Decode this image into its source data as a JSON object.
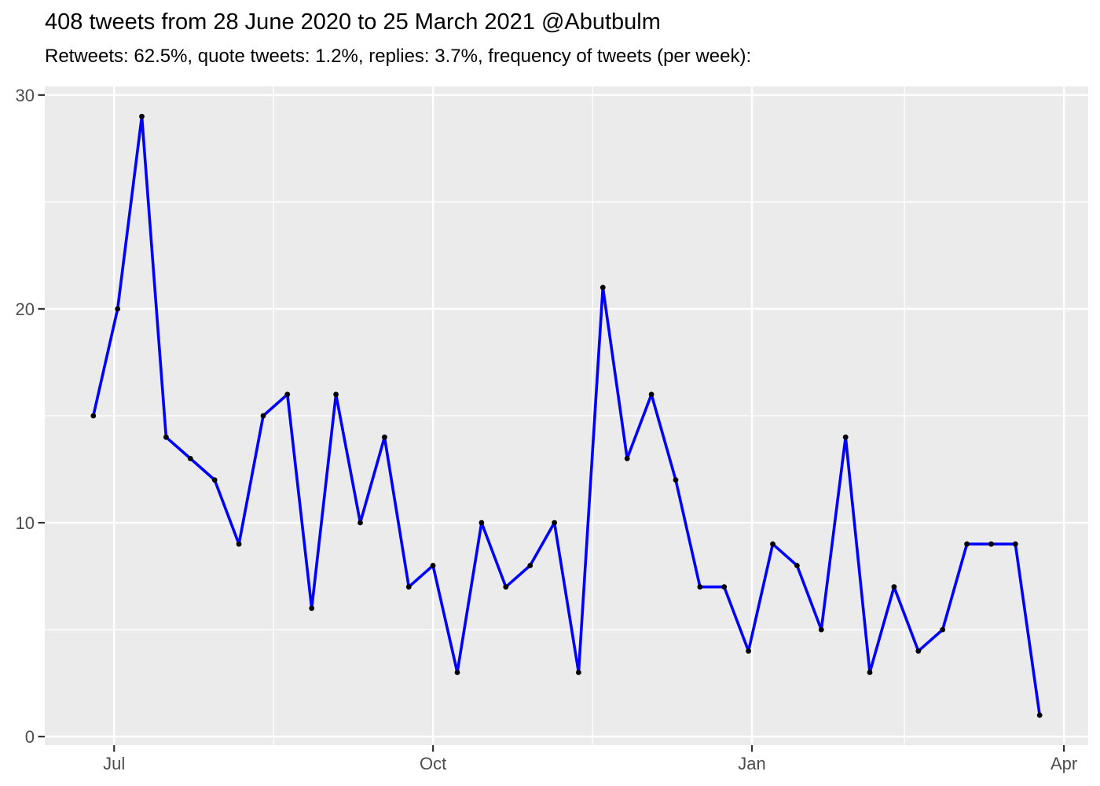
{
  "header": {
    "title": "408 tweets from 28 June 2020 to 25 March 2021 @Abutbulm",
    "subtitle": "Retweets: 62.5%, quote tweets: 1.2%, replies: 3.7%, frequency of tweets (per week):"
  },
  "chart_data": {
    "type": "line",
    "title": "408 tweets from 28 June 2020 to 25 March 2021 @Abutbulm",
    "subtitle": "Retweets: 62.5%, quote tweets: 1.2%, replies: 3.7%, frequency of tweets (per week):",
    "xlabel": "",
    "ylabel": "",
    "legend": "none",
    "grid": "white major and minor gridlines on gray panel",
    "total_tweets": 408,
    "series": [
      {
        "name": "tweets-per-week",
        "x": [
          "2020-06-25",
          "2020-07-02",
          "2020-07-09",
          "2020-07-16",
          "2020-07-23",
          "2020-07-30",
          "2020-08-06",
          "2020-08-13",
          "2020-08-20",
          "2020-08-27",
          "2020-09-03",
          "2020-09-10",
          "2020-09-17",
          "2020-09-24",
          "2020-10-01",
          "2020-10-08",
          "2020-10-15",
          "2020-10-22",
          "2020-10-29",
          "2020-11-05",
          "2020-11-12",
          "2020-11-19",
          "2020-11-26",
          "2020-12-03",
          "2020-12-10",
          "2020-12-17",
          "2020-12-24",
          "2020-12-31",
          "2021-01-07",
          "2021-01-14",
          "2021-01-21",
          "2021-01-28",
          "2021-02-04",
          "2021-02-11",
          "2021-02-18",
          "2021-02-25",
          "2021-03-04",
          "2021-03-11",
          "2021-03-18",
          "2021-03-25"
        ],
        "values": [
          15,
          20,
          29,
          14,
          13,
          12,
          9,
          15,
          16,
          6,
          16,
          10,
          14,
          7,
          8,
          3,
          10,
          7,
          8,
          10,
          3,
          21,
          13,
          16,
          12,
          7,
          7,
          4,
          9,
          8,
          5,
          14,
          3,
          7,
          4,
          5,
          9,
          9,
          9,
          1
        ]
      }
    ],
    "x_axis": {
      "range": [
        "2020-06-11",
        "2021-04-08"
      ],
      "major_ticks": [
        {
          "label": "Jul",
          "date": "2020-07-01"
        },
        {
          "label": "Oct",
          "date": "2020-10-01"
        },
        {
          "label": "Jan",
          "date": "2021-01-01"
        },
        {
          "label": "Apr",
          "date": "2021-04-01"
        }
      ],
      "minor_gridlines": [
        "2020-08-16",
        "2020-11-16",
        "2021-02-14"
      ]
    },
    "y_axis": {
      "range": [
        -0.4,
        30.4
      ],
      "major_ticks": [
        {
          "label": "0",
          "value": 0
        },
        {
          "label": "10",
          "value": 10
        },
        {
          "label": "20",
          "value": 20
        },
        {
          "label": "30",
          "value": 30
        }
      ],
      "minor_gridlines": [
        5,
        15,
        25
      ]
    },
    "colors": {
      "line": "#0000FF",
      "point": "#000000",
      "panel_background": "#EBEBEB",
      "gridline": "#FFFFFF",
      "axis_text": "#4D4D4D",
      "tick_mark": "#333333",
      "title_text": "#000000",
      "page_background": "#FFFFFF"
    }
  }
}
